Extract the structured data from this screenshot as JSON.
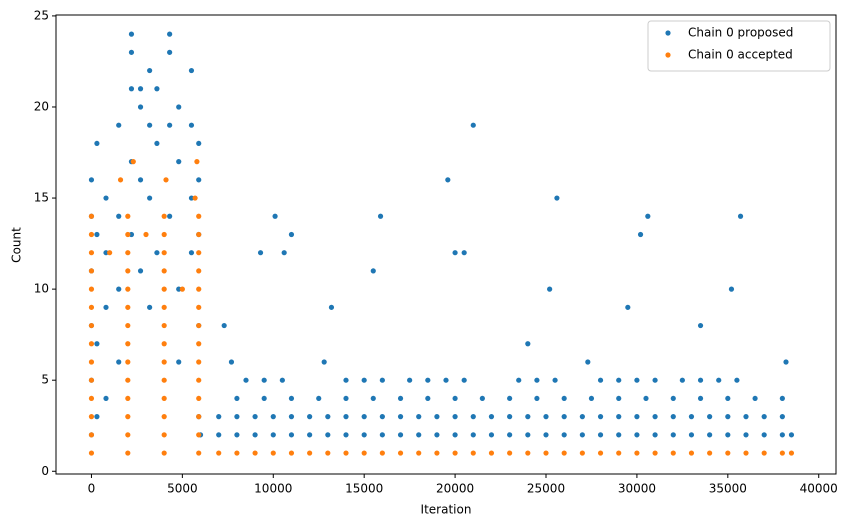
{
  "chart_data": {
    "type": "scatter",
    "xlabel": "Iteration",
    "ylabel": "Count",
    "xlim": [
      -1950,
      40950
    ],
    "ylim": [
      -0.15,
      25.05
    ],
    "xticks": [
      0,
      5000,
      10000,
      15000,
      20000,
      25000,
      30000,
      35000,
      40000
    ],
    "yticks": [
      0,
      5,
      10,
      15,
      20,
      25
    ],
    "legend": "upper right",
    "series": [
      {
        "name": "Chain 0 proposed",
        "color": "#1f77b4",
        "x": [
          0,
          0,
          0,
          0,
          0,
          0,
          300,
          300,
          300,
          300,
          800,
          800,
          800,
          800,
          1500,
          1500,
          1500,
          1500,
          2200,
          2200,
          2200,
          2200,
          2200,
          2700,
          2700,
          2700,
          2700,
          3200,
          3200,
          3200,
          3200,
          3600,
          3600,
          3600,
          4300,
          4300,
          4300,
          4300,
          4800,
          4800,
          4800,
          4800,
          5500,
          5500,
          5500,
          5500,
          5900,
          5900,
          5900,
          5900,
          5900,
          6000,
          7000,
          8000,
          9000,
          10000,
          11000,
          12000,
          13000,
          14000,
          15000,
          16000,
          17000,
          18000,
          19000,
          20000,
          21000,
          22000,
          23000,
          24000,
          25000,
          26000,
          27000,
          28000,
          29000,
          30000,
          31000,
          32000,
          33000,
          34000,
          35000,
          36000,
          37000,
          38000,
          38500,
          7000,
          8000,
          9000,
          10000,
          11000,
          12000,
          13000,
          14000,
          15000,
          16000,
          17000,
          18000,
          19000,
          20000,
          21000,
          22000,
          23000,
          24000,
          25000,
          26000,
          27000,
          28000,
          29000,
          30000,
          31000,
          32000,
          33000,
          34000,
          35000,
          36000,
          37000,
          38000,
          8000,
          9500,
          11000,
          12500,
          14000,
          15500,
          17000,
          18500,
          20000,
          21500,
          23000,
          24500,
          26000,
          27500,
          29000,
          30500,
          32000,
          33500,
          35000,
          36500,
          38000,
          8500,
          9500,
          10500,
          14000,
          15000,
          16000,
          17500,
          18500,
          19500,
          20500,
          23500,
          24500,
          25500,
          28000,
          29000,
          30000,
          31000,
          32500,
          33500,
          34500,
          35500,
          7300,
          7700,
          9300,
          10100,
          10600,
          11000,
          12800,
          13200,
          15500,
          15900,
          19600,
          20000,
          20500,
          21000,
          24000,
          25200,
          25600,
          27300,
          29500,
          30200,
          30600,
          33500,
          35200,
          35700,
          38200
        ],
        "values": [
          2,
          5,
          8,
          11,
          14,
          16,
          18,
          3,
          7,
          13,
          9,
          12,
          15,
          4,
          19,
          6,
          10,
          14,
          24,
          23,
          21,
          17,
          13,
          20,
          21,
          16,
          11,
          19,
          22,
          15,
          9,
          21,
          18,
          12,
          24,
          23,
          19,
          14,
          20,
          17,
          10,
          6,
          22,
          19,
          15,
          12,
          18,
          16,
          13,
          8,
          3,
          2,
          2,
          2,
          2,
          2,
          2,
          2,
          2,
          2,
          2,
          2,
          2,
          2,
          2,
          2,
          2,
          2,
          2,
          2,
          2,
          2,
          2,
          2,
          2,
          2,
          2,
          2,
          2,
          2,
          2,
          2,
          2,
          2,
          2,
          3,
          3,
          3,
          3,
          3,
          3,
          3,
          3,
          3,
          3,
          3,
          3,
          3,
          3,
          3,
          3,
          3,
          3,
          3,
          3,
          3,
          3,
          3,
          3,
          3,
          3,
          3,
          3,
          3,
          3,
          3,
          3,
          4,
          4,
          4,
          4,
          4,
          4,
          4,
          4,
          4,
          4,
          4,
          4,
          4,
          4,
          4,
          4,
          4,
          4,
          4,
          4,
          4,
          5,
          5,
          5,
          5,
          5,
          5,
          5,
          5,
          5,
          5,
          5,
          5,
          5,
          5,
          5,
          5,
          5,
          5,
          5,
          5,
          5,
          8,
          6,
          12,
          14,
          12,
          13,
          6,
          9,
          11,
          14,
          16,
          12,
          12,
          19,
          7,
          10,
          15,
          6,
          9,
          13,
          14,
          8,
          10,
          14,
          6
        ]
      },
      {
        "name": "Chain 0 accepted",
        "color": "#ff7f0e",
        "x": [
          0,
          0,
          0,
          0,
          0,
          0,
          0,
          0,
          0,
          0,
          0,
          0,
          0,
          0,
          2000,
          2000,
          2000,
          2000,
          2000,
          2000,
          2000,
          2000,
          2000,
          2000,
          2000,
          2000,
          2000,
          2000,
          4000,
          4000,
          4000,
          4000,
          4000,
          4000,
          4000,
          4000,
          4000,
          4000,
          4000,
          4000,
          4000,
          4000,
          5900,
          5900,
          5900,
          5900,
          5900,
          5900,
          5900,
          5900,
          5900,
          5900,
          5900,
          5900,
          5900,
          5900,
          1600,
          2300,
          4100,
          5800,
          5700,
          1000,
          3000,
          5000,
          7000,
          8000,
          9000,
          10000,
          11000,
          12000,
          13000,
          14000,
          15000,
          16000,
          17000,
          18000,
          19000,
          20000,
          21000,
          22000,
          23000,
          24000,
          25000,
          26000,
          27000,
          28000,
          29000,
          30000,
          31000,
          32000,
          33000,
          34000,
          35000,
          36000,
          37000,
          38000,
          38500
        ],
        "values": [
          1,
          2,
          3,
          4,
          5,
          6,
          7,
          8,
          9,
          10,
          11,
          12,
          13,
          14,
          1,
          2,
          3,
          4,
          5,
          6,
          7,
          8,
          9,
          10,
          11,
          12,
          13,
          14,
          1,
          2,
          3,
          4,
          5,
          6,
          7,
          8,
          9,
          10,
          11,
          12,
          13,
          14,
          1,
          2,
          3,
          4,
          5,
          6,
          7,
          8,
          9,
          10,
          11,
          12,
          13,
          14,
          16,
          17,
          16,
          17,
          15,
          12,
          13,
          10,
          1,
          1,
          1,
          1,
          1,
          1,
          1,
          1,
          1,
          1,
          1,
          1,
          1,
          1,
          1,
          1,
          1,
          1,
          1,
          1,
          1,
          1,
          1,
          1,
          1,
          1,
          1,
          1,
          1,
          1,
          1,
          1,
          1
        ]
      }
    ]
  }
}
